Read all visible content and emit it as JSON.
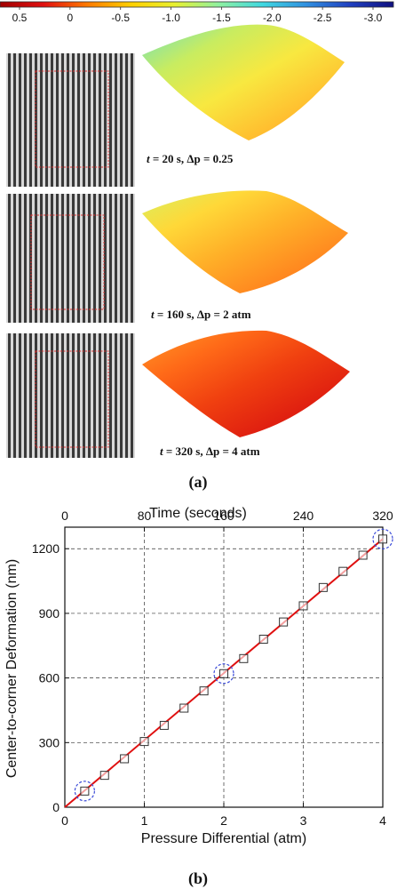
{
  "colorbar": {
    "ticks": [
      "0.5",
      "0",
      "-0.5",
      "-1.0",
      "-1.5",
      "-2.0",
      "-2.5",
      "-3.0"
    ],
    "colors": [
      "#a00000",
      "#e01010",
      "#ff7a00",
      "#ffd000",
      "#e8f030",
      "#8ff0a0",
      "#40d8e0",
      "#3090e0",
      "#2040c0",
      "#101080"
    ]
  },
  "panel_a": {
    "label": "a",
    "rows": [
      {
        "caption_t": "t",
        "caption_rest": " = 20 s, Δp = 0.25",
        "surface_colors": [
          "#6fe0c0",
          "#c8ec60",
          "#f8e840",
          "#ffc030",
          "#ff9a28"
        ]
      },
      {
        "caption_t": "t",
        "caption_rest": " = 160 s, Δp = 2 atm",
        "surface_colors": [
          "#d8f060",
          "#ffd838",
          "#ffb028",
          "#ff8a20",
          "#ff6a18"
        ]
      },
      {
        "caption_t": "t",
        "caption_rest": " = 320 s, Δp = 4 atm",
        "surface_colors": [
          "#ff9a28",
          "#ff6a18",
          "#f04010",
          "#e02010",
          "#c81008"
        ]
      }
    ]
  },
  "panel_b": {
    "label": "b",
    "title_top": "Time (seconds)",
    "xlabel": "Pressure Differential (atm)",
    "ylabel": "Center-to-corner Deformation (nm)"
  },
  "chart_data": {
    "type": "scatter",
    "x_range": [
      0,
      4
    ],
    "y_range": [
      0,
      1300
    ],
    "x_ticks": [
      "0",
      "1",
      "2",
      "3",
      "4"
    ],
    "y_ticks": [
      "0",
      "300",
      "600",
      "900",
      "1200"
    ],
    "top_ticks": [
      "0",
      "80",
      "160",
      "240",
      "320"
    ],
    "grid": true,
    "series": [
      {
        "marker": "open-square",
        "x": [
          0.25,
          0.5,
          0.75,
          1.0,
          1.25,
          1.5,
          1.75,
          2.0,
          2.25,
          2.5,
          2.75,
          3.0,
          3.25,
          3.5,
          3.75,
          4.0
        ],
        "y": [
          75,
          148,
          225,
          305,
          380,
          460,
          540,
          620,
          690,
          780,
          860,
          935,
          1020,
          1095,
          1170,
          1245
        ]
      },
      {
        "style": "fit-line",
        "color": "#e01010",
        "x": [
          0,
          4
        ],
        "y": [
          0,
          1245
        ]
      }
    ],
    "highlighted_points": [
      {
        "x": 0.25,
        "y": 75
      },
      {
        "x": 2.0,
        "y": 620
      },
      {
        "x": 4.0,
        "y": 1245
      }
    ]
  }
}
